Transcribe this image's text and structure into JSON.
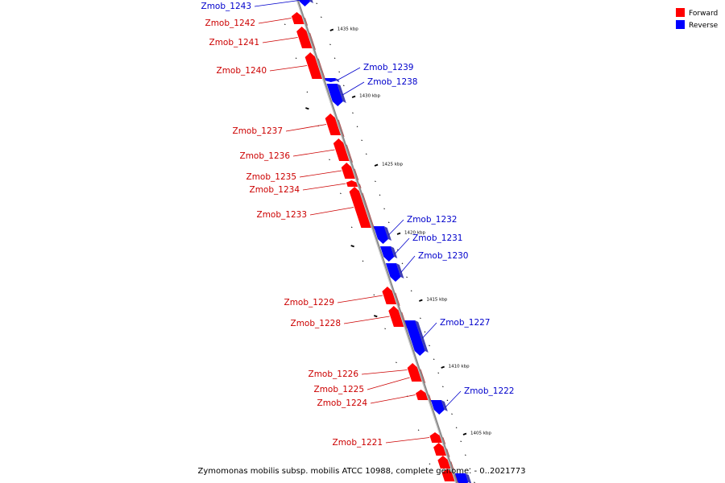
{
  "caption": "Zymomonas mobilis subsp. mobilis ATCC 10988, complete genome. - 0..2021773",
  "legend": {
    "forward_label": "Forward",
    "reverse_label": "Reverse",
    "forward_color": "#ff0000",
    "reverse_color": "#0000ff"
  },
  "ticks": [
    "1435 kbp",
    "1430 kbp",
    "1425 kbp",
    "1420 kbp",
    "1415 kbp",
    "1410 kbp",
    "1405 kbp"
  ],
  "genes": [
    {
      "name": "Zmob_1243",
      "strand": "reverse"
    },
    {
      "name": "Zmob_1242",
      "strand": "forward"
    },
    {
      "name": "Zmob_1241",
      "strand": "forward"
    },
    {
      "name": "Zmob_1240",
      "strand": "forward"
    },
    {
      "name": "Zmob_1239",
      "strand": "reverse"
    },
    {
      "name": "Zmob_1238",
      "strand": "reverse"
    },
    {
      "name": "Zmob_1237",
      "strand": "forward"
    },
    {
      "name": "Zmob_1236",
      "strand": "forward"
    },
    {
      "name": "Zmob_1235",
      "strand": "forward"
    },
    {
      "name": "Zmob_1234",
      "strand": "forward"
    },
    {
      "name": "Zmob_1233",
      "strand": "forward"
    },
    {
      "name": "Zmob_1232",
      "strand": "reverse"
    },
    {
      "name": "Zmob_1231",
      "strand": "reverse"
    },
    {
      "name": "Zmob_1230",
      "strand": "reverse"
    },
    {
      "name": "Zmob_1229",
      "strand": "forward"
    },
    {
      "name": "Zmob_1228",
      "strand": "forward"
    },
    {
      "name": "Zmob_1227",
      "strand": "reverse"
    },
    {
      "name": "Zmob_1226",
      "strand": "forward"
    },
    {
      "name": "Zmob_1225",
      "strand": "forward"
    },
    {
      "name": "Zmob_1224",
      "strand": "forward"
    },
    {
      "name": "Zmob_1222",
      "strand": "reverse"
    },
    {
      "name": "Zmob_1221",
      "strand": "forward"
    }
  ]
}
